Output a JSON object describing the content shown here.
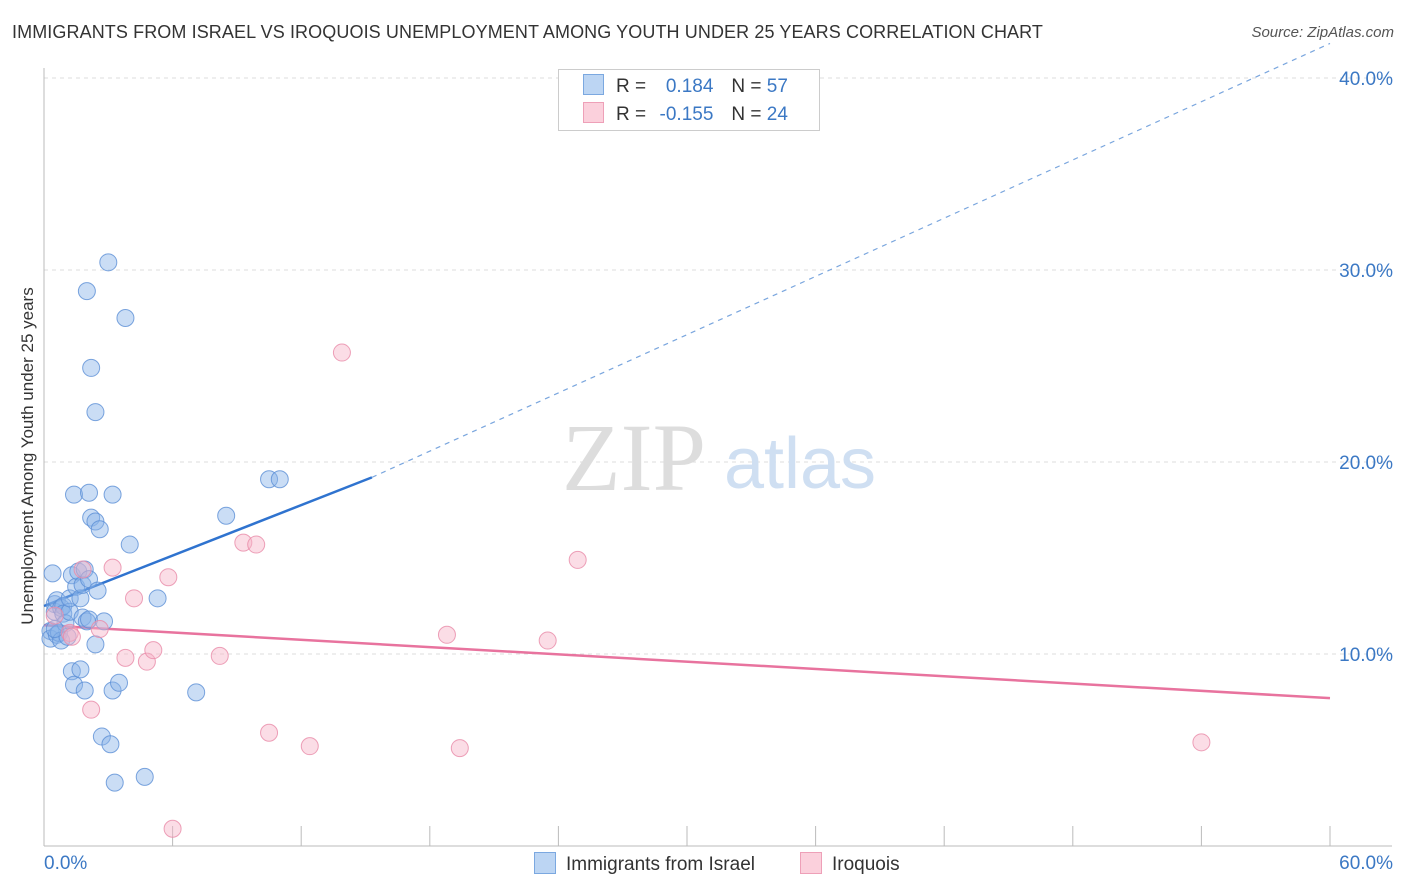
{
  "title": "IMMIGRANTS FROM ISRAEL VS IROQUOIS UNEMPLOYMENT AMONG YOUTH UNDER 25 YEARS CORRELATION CHART",
  "source": "Source: ZipAtlas.com",
  "watermark": {
    "zip": "ZIP",
    "atlas": "atlas"
  },
  "legend": {
    "rows": [
      {
        "r_label": "R =",
        "r_value": "0.184",
        "n_label": "N =",
        "n_value": "57"
      },
      {
        "r_label": "R =",
        "r_value": "-0.155",
        "n_label": "N =",
        "n_value": "24"
      }
    ]
  },
  "chart_data": {
    "type": "scatter",
    "title": "IMMIGRANTS FROM ISRAEL VS IROQUOIS UNEMPLOYMENT AMONG YOUTH UNDER 25 YEARS CORRELATION CHART",
    "xlabel": "",
    "ylabel": "Unemployment Among Youth under 25 years",
    "xlim": [
      0,
      60
    ],
    "ylim": [
      0,
      40
    ],
    "x_tick_labels": [
      "0.0%",
      "60.0%"
    ],
    "y_tick_labels": [
      "10.0%",
      "20.0%",
      "30.0%",
      "40.0%"
    ],
    "y_ticks": [
      10,
      20,
      30,
      40
    ],
    "grid": true,
    "series": [
      {
        "name": "Immigrants from Israel",
        "color": "#8ab4e8",
        "edge": "#5b8fd6",
        "line_color": "#2f73cf",
        "r": 0.184,
        "n": 57,
        "trend": {
          "x0": 0,
          "y0": 12.5,
          "x1": 15.3,
          "y1": 19.2,
          "x_end": 60,
          "y_end": 41.8
        },
        "points": [
          [
            0.3,
            11.2
          ],
          [
            0.3,
            10.8
          ],
          [
            0.4,
            14.2
          ],
          [
            0.5,
            12.6
          ],
          [
            0.5,
            12.2
          ],
          [
            0.6,
            11.0
          ],
          [
            0.6,
            12.8
          ],
          [
            0.7,
            11.1
          ],
          [
            0.8,
            10.7
          ],
          [
            0.8,
            12.4
          ],
          [
            0.9,
            12.5
          ],
          [
            0.9,
            12.1
          ],
          [
            1.0,
            11.6
          ],
          [
            1.1,
            10.9
          ],
          [
            1.2,
            12.2
          ],
          [
            1.2,
            12.9
          ],
          [
            1.3,
            14.1
          ],
          [
            1.3,
            9.1
          ],
          [
            1.4,
            18.3
          ],
          [
            1.4,
            8.4
          ],
          [
            1.5,
            13.5
          ],
          [
            1.6,
            14.3
          ],
          [
            1.7,
            12.9
          ],
          [
            1.7,
            9.2
          ],
          [
            1.8,
            11.9
          ],
          [
            1.8,
            13.6
          ],
          [
            1.9,
            14.4
          ],
          [
            1.9,
            8.1
          ],
          [
            2.0,
            11.7
          ],
          [
            2.0,
            28.9
          ],
          [
            2.1,
            18.4
          ],
          [
            2.1,
            11.8
          ],
          [
            2.1,
            13.9
          ],
          [
            2.2,
            24.9
          ],
          [
            2.2,
            17.1
          ],
          [
            2.4,
            16.9
          ],
          [
            2.4,
            22.6
          ],
          [
            2.4,
            10.5
          ],
          [
            2.5,
            13.3
          ],
          [
            2.6,
            16.5
          ],
          [
            2.7,
            5.7
          ],
          [
            2.8,
            11.7
          ],
          [
            3.0,
            30.4
          ],
          [
            3.1,
            5.3
          ],
          [
            3.2,
            8.1
          ],
          [
            3.2,
            18.3
          ],
          [
            3.3,
            3.3
          ],
          [
            3.5,
            8.5
          ],
          [
            3.8,
            27.5
          ],
          [
            4.0,
            15.7
          ],
          [
            4.7,
            3.6
          ],
          [
            5.3,
            12.9
          ],
          [
            7.1,
            8.0
          ],
          [
            8.5,
            17.2
          ],
          [
            10.5,
            19.1
          ],
          [
            11.0,
            19.1
          ],
          [
            0.5,
            11.3
          ]
        ]
      },
      {
        "name": "Iroquois",
        "color": "#f6b4c8",
        "edge": "#e88aa8",
        "line_color": "#e8739e",
        "r": -0.155,
        "n": 24,
        "trend": {
          "x0": 0,
          "y0": 11.5,
          "x1": 60,
          "y1": 7.7
        },
        "points": [
          [
            0.5,
            12.0
          ],
          [
            1.2,
            11.1
          ],
          [
            1.3,
            10.9
          ],
          [
            1.8,
            14.4
          ],
          [
            2.2,
            7.1
          ],
          [
            2.6,
            11.3
          ],
          [
            3.2,
            14.5
          ],
          [
            3.8,
            9.8
          ],
          [
            4.2,
            12.9
          ],
          [
            4.8,
            9.6
          ],
          [
            5.1,
            10.2
          ],
          [
            5.8,
            14.0
          ],
          [
            6.0,
            0.9
          ],
          [
            8.2,
            9.9
          ],
          [
            9.3,
            15.8
          ],
          [
            9.9,
            15.7
          ],
          [
            10.5,
            5.9
          ],
          [
            12.4,
            5.2
          ],
          [
            13.9,
            25.7
          ],
          [
            18.8,
            11.0
          ],
          [
            19.4,
            5.1
          ],
          [
            23.5,
            10.7
          ],
          [
            24.9,
            14.9
          ],
          [
            54.0,
            5.4
          ]
        ]
      }
    ]
  }
}
